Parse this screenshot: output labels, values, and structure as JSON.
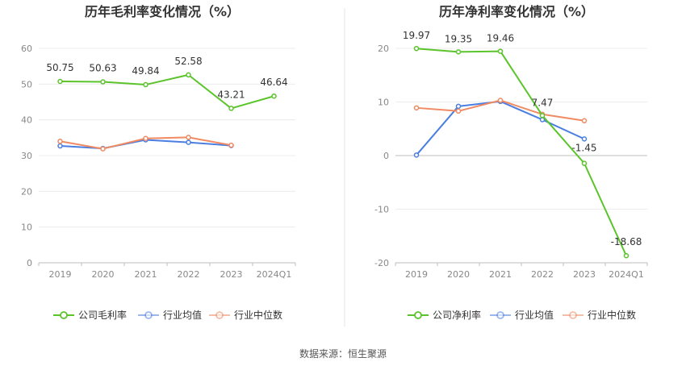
{
  "source": "数据来源：恒生聚源",
  "colors": {
    "company": "#5bc42b",
    "industry_avg": "#4a7ee0",
    "industry_median": "#f08a62"
  },
  "chart_data": [
    {
      "type": "line",
      "title": "历年毛利率变化情况（%）",
      "categories": [
        "2019",
        "2020",
        "2021",
        "2022",
        "2023",
        "2024Q1"
      ],
      "ylim": [
        0,
        60
      ],
      "yticks": [
        "0",
        "10",
        "20",
        "30",
        "40",
        "50",
        "60"
      ],
      "grid": true,
      "legend_position": "bottom",
      "series": [
        {
          "name": "公司毛利率",
          "color": "#5bc42b",
          "values": [
            50.75,
            50.63,
            49.84,
            52.58,
            43.21,
            46.64
          ],
          "labels": [
            "50.75",
            "50.63",
            "49.84",
            "52.58",
            "43.21",
            "46.64"
          ]
        },
        {
          "name": "行业均值",
          "color": "#4a7ee0",
          "values": [
            32.7,
            32.0,
            34.4,
            33.7,
            32.8,
            null
          ]
        },
        {
          "name": "行业中位数",
          "color": "#f08a62",
          "values": [
            34.0,
            31.9,
            34.8,
            35.1,
            32.9,
            null
          ]
        }
      ]
    },
    {
      "type": "line",
      "title": "历年净利率变化情况（%）",
      "categories": [
        "2019",
        "2020",
        "2021",
        "2022",
        "2023",
        "2024Q1"
      ],
      "ylim": [
        -20,
        20
      ],
      "yticks": [
        "-20",
        "-10",
        "0",
        "10",
        "20"
      ],
      "grid": true,
      "legend_position": "bottom",
      "series": [
        {
          "name": "公司净利率",
          "color": "#5bc42b",
          "values": [
            19.97,
            19.35,
            19.46,
            7.47,
            -1.45,
            -18.68
          ],
          "labels": [
            "19.97",
            "19.35",
            "19.46",
            "7.47",
            "-1.45",
            "-18.68"
          ]
        },
        {
          "name": "行业均值",
          "color": "#4a7ee0",
          "values": [
            0.1,
            9.2,
            10.1,
            6.7,
            3.1,
            null
          ]
        },
        {
          "name": "行业中位数",
          "color": "#f08a62",
          "values": [
            8.9,
            8.3,
            10.3,
            7.7,
            6.5,
            null
          ]
        }
      ]
    }
  ]
}
